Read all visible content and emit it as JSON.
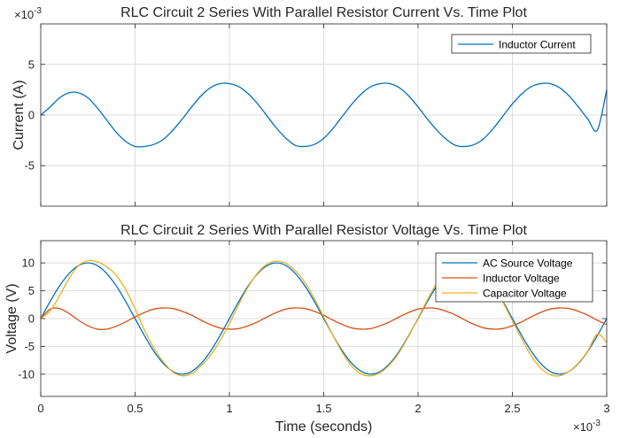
{
  "chart_data": [
    {
      "type": "line",
      "title": "RLC Circuit 2 Series With Parallel Resistor Current Vs. Time Plot",
      "xlabel": "",
      "ylabel": "Current (A)",
      "y_exponent": {
        "base": "×10",
        "power": "-3"
      },
      "xlim": [
        0,
        0.003
      ],
      "ylim": [
        -0.009,
        0.009
      ],
      "yticks": [
        -0.005,
        0,
        0.005
      ],
      "ytick_labels": [
        "-5",
        "0",
        "5"
      ],
      "xticks": [
        0,
        0.0005,
        0.001,
        0.0015,
        0.002,
        0.0025,
        0.003
      ],
      "grid": true,
      "legend_position": "top-right",
      "series": [
        {
          "name": "Inductor Current",
          "color": "#0072BD",
          "x": [
            0,
            5e-05,
            0.0001,
            0.00015,
            0.0002,
            0.00025,
            0.0003,
            0.00035,
            0.0004,
            0.00045,
            0.0005,
            0.00055,
            0.0006,
            0.00065,
            0.0007,
            0.00075,
            0.0008,
            0.00085,
            0.0009,
            0.00095,
            0.001,
            0.00105,
            0.0011,
            0.00115,
            0.0012,
            0.00125,
            0.0013,
            0.00135,
            0.0014,
            0.00145,
            0.0015,
            0.00155,
            0.0016,
            0.00165,
            0.0017,
            0.00175,
            0.0018,
            0.00185,
            0.0019,
            0.00195,
            0.002,
            0.00205,
            0.0021,
            0.00215,
            0.0022,
            0.00225,
            0.0023,
            0.00235,
            0.0024,
            0.00245,
            0.0025,
            0.00255,
            0.0026,
            0.00265,
            0.0027,
            0.00275,
            0.0028,
            0.00285,
            0.0029,
            0.00295,
            0.003
          ],
          "y": [
            0,
            0.0008,
            0.0017,
            0.0022,
            0.0022,
            0.0017,
            0.0007,
            -0.0005,
            -0.0017,
            -0.0026,
            -0.0031,
            -0.0031,
            -0.0029,
            -0.0024,
            -0.0015,
            -0.0004,
            0.0008,
            0.0019,
            0.0027,
            0.0031,
            0.0031,
            0.0028,
            0.0021,
            0.0011,
            -0.0001,
            -0.0013,
            -0.0023,
            -0.003,
            -0.0031,
            -0.0029,
            -0.0023,
            -0.0013,
            -0.0001,
            0.0011,
            0.0021,
            0.0028,
            0.0031,
            0.0031,
            0.0027,
            0.0019,
            0.0008,
            -0.0004,
            -0.0015,
            -0.0024,
            -0.003,
            -0.0031,
            -0.0029,
            -0.0023,
            -0.0013,
            -0.0001,
            0.0011,
            0.0021,
            0.0028,
            0.0031,
            0.0031,
            0.0027,
            0.0019,
            0.0008,
            -0.0004,
            -0.0015,
            0.0025
          ]
        }
      ]
    },
    {
      "type": "line",
      "title": "RLC Circuit 2 Series With Parallel Resistor Voltage Vs. Time Plot",
      "xlabel": "Time (seconds)",
      "ylabel": "Voltage (V)",
      "x_exponent": {
        "base": "×10",
        "power": "-3"
      },
      "xlim": [
        0,
        0.003
      ],
      "ylim": [
        -14,
        14
      ],
      "yticks": [
        -10,
        -5,
        0,
        5,
        10
      ],
      "ytick_labels": [
        "-10",
        "-5",
        "0",
        "5",
        "10"
      ],
      "xticks": [
        0,
        0.0005,
        0.001,
        0.0015,
        0.002,
        0.0025,
        0.003
      ],
      "xtick_labels": [
        "0",
        "0.5",
        "1",
        "1.5",
        "2",
        "2.5",
        "3"
      ],
      "grid": true,
      "legend_position": "top-right",
      "series": [
        {
          "name": "AC Source Voltage",
          "color": "#0072BD",
          "x": [
            0,
            5e-05,
            0.0001,
            0.00015,
            0.0002,
            0.00025,
            0.0003,
            0.00035,
            0.0004,
            0.00045,
            0.0005,
            0.00055,
            0.0006,
            0.00065,
            0.0007,
            0.00075,
            0.0008,
            0.00085,
            0.0009,
            0.00095,
            0.001,
            0.00105,
            0.0011,
            0.00115,
            0.0012,
            0.00125,
            0.0013,
            0.00135,
            0.0014,
            0.00145,
            0.0015,
            0.00155,
            0.0016,
            0.00165,
            0.0017,
            0.00175,
            0.0018,
            0.00185,
            0.0019,
            0.00195,
            0.002,
            0.00205,
            0.0021,
            0.00215,
            0.0022,
            0.00225,
            0.0023,
            0.00235,
            0.0024,
            0.00245,
            0.0025,
            0.00255,
            0.0026,
            0.00265,
            0.0027,
            0.00275,
            0.0028,
            0.00285,
            0.0029,
            0.00295,
            0.003
          ],
          "y": [
            0,
            3.09,
            5.88,
            8.09,
            9.51,
            10,
            9.51,
            8.09,
            5.88,
            3.09,
            0,
            -3.09,
            -5.88,
            -8.09,
            -9.51,
            -10,
            -9.51,
            -8.09,
            -5.88,
            -3.09,
            0,
            3.09,
            5.88,
            8.09,
            9.51,
            10,
            9.51,
            8.09,
            5.88,
            3.09,
            0,
            -3.09,
            -5.88,
            -8.09,
            -9.51,
            -10,
            -9.51,
            -8.09,
            -5.88,
            -3.09,
            0,
            3.09,
            5.88,
            8.09,
            9.51,
            10,
            9.51,
            8.09,
            5.88,
            3.09,
            0,
            -3.09,
            -5.88,
            -8.09,
            -9.51,
            -10,
            -9.51,
            -8.09,
            -5.88,
            -3.09,
            0
          ]
        },
        {
          "name": "Inductor Voltage",
          "color": "#D95319",
          "x": [
            0,
            5e-05,
            0.0001,
            0.00015,
            0.0002,
            0.00025,
            0.0003,
            0.00035,
            0.0004,
            0.00045,
            0.0005,
            0.00055,
            0.0006,
            0.00065,
            0.0007,
            0.00075,
            0.0008,
            0.00085,
            0.0009,
            0.00095,
            0.001,
            0.00105,
            0.0011,
            0.00115,
            0.0012,
            0.00125,
            0.0013,
            0.00135,
            0.0014,
            0.00145,
            0.0015,
            0.00155,
            0.0016,
            0.00165,
            0.0017,
            0.00175,
            0.0018,
            0.00185,
            0.0019,
            0.00195,
            0.002,
            0.00205,
            0.0021,
            0.00215,
            0.0022,
            0.00225,
            0.0023,
            0.00235,
            0.0024,
            0.00245,
            0.0025,
            0.00255,
            0.0026,
            0.00265,
            0.0027,
            0.00275,
            0.0028,
            0.00285,
            0.0029,
            0.00295,
            0.003
          ],
          "y": [
            0,
            1.7,
            1.8,
            0.9,
            -0.3,
            -1.3,
            -1.9,
            -1.9,
            -1.4,
            -0.6,
            0.3,
            1.1,
            1.7,
            1.9,
            1.8,
            1.3,
            0.6,
            -0.3,
            -1.1,
            -1.7,
            -1.9,
            -1.8,
            -1.3,
            -0.6,
            0.3,
            1.1,
            1.7,
            1.9,
            1.8,
            1.3,
            0.6,
            -0.3,
            -1.1,
            -1.7,
            -1.9,
            -1.8,
            -1.3,
            -0.6,
            0.3,
            1.1,
            1.7,
            1.9,
            1.8,
            1.3,
            0.6,
            -0.3,
            -1.1,
            -1.7,
            -1.9,
            -1.8,
            -1.3,
            -0.6,
            0.3,
            1.1,
            1.7,
            1.9,
            1.8,
            1.3,
            0.6,
            -0.3,
            -1.1
          ]
        },
        {
          "name": "Capacitor Voltage",
          "color": "#EDB120",
          "x": [
            0,
            5e-05,
            0.0001,
            0.00015,
            0.0002,
            0.00025,
            0.0003,
            0.00035,
            0.0004,
            0.00045,
            0.0005,
            0.00055,
            0.0006,
            0.00065,
            0.0007,
            0.00075,
            0.0008,
            0.00085,
            0.0009,
            0.00095,
            0.001,
            0.00105,
            0.0011,
            0.00115,
            0.0012,
            0.00125,
            0.0013,
            0.00135,
            0.0014,
            0.00145,
            0.0015,
            0.00155,
            0.0016,
            0.00165,
            0.0017,
            0.00175,
            0.0018,
            0.00185,
            0.0019,
            0.00195,
            0.002,
            0.00205,
            0.0021,
            0.00215,
            0.0022,
            0.00225,
            0.0023,
            0.00235,
            0.0024,
            0.00245,
            0.0025,
            0.00255,
            0.0026,
            0.00265,
            0.0027,
            0.00275,
            0.0028,
            0.00285,
            0.0029,
            0.00295,
            0.003
          ],
          "y": [
            0,
            1.4,
            4.1,
            7.2,
            9.5,
            10.4,
            10.2,
            9.3,
            7.8,
            5.2,
            1.8,
            -2.1,
            -5.3,
            -7.8,
            -9.6,
            -10.3,
            -9.9,
            -8.5,
            -6.6,
            -4,
            -0.9,
            2.6,
            5.7,
            8.2,
            9.8,
            10.3,
            9.9,
            8.6,
            6.5,
            3.6,
            0.3,
            -3.1,
            -6.2,
            -8.6,
            -10,
            -10.3,
            -9.7,
            -8.3,
            -6.1,
            -3.2,
            0.1,
            3.4,
            6.4,
            8.8,
            10.1,
            10.3,
            9.6,
            8.1,
            5.9,
            2.9,
            -0.4,
            -3.7,
            -6.7,
            -8.9,
            -10.1,
            -10.3,
            -9.5,
            -8,
            -5.8,
            -2.8,
            -4.3
          ]
        }
      ]
    }
  ]
}
